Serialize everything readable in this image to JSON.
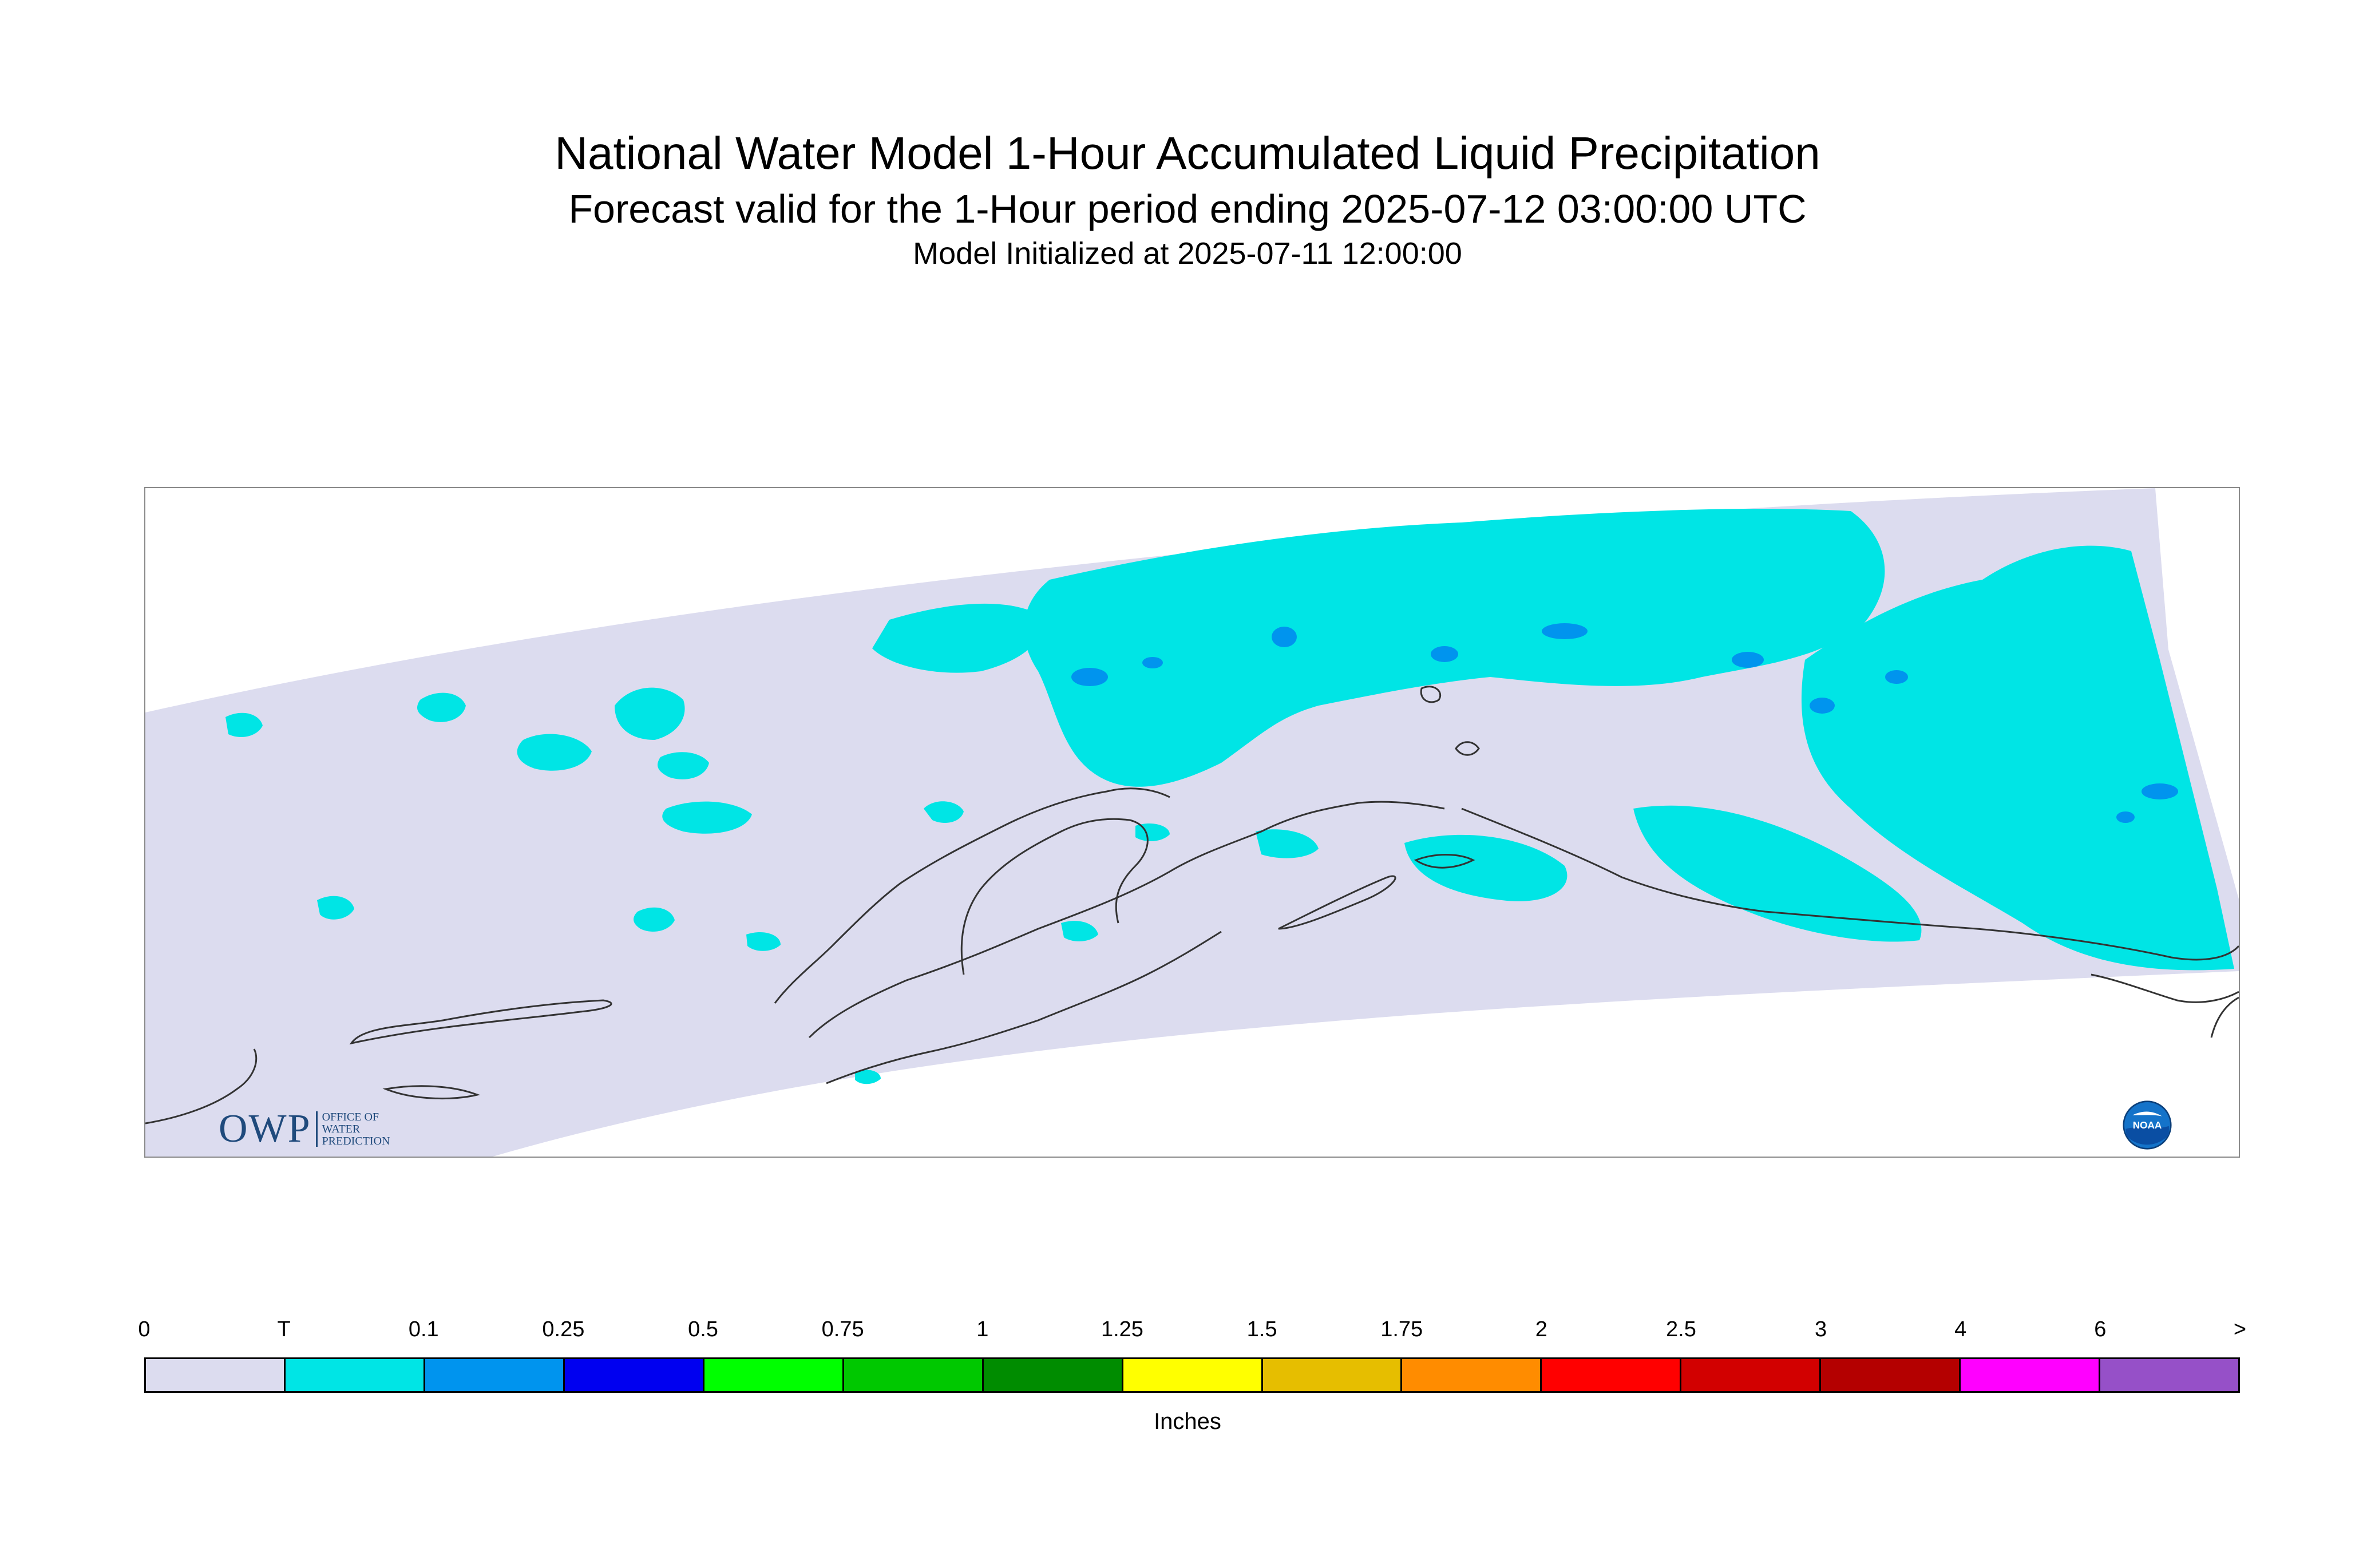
{
  "header": {
    "title": "National Water Model 1-Hour Accumulated Liquid Precipitation",
    "subtitle": "Forecast valid for the 1-Hour period ending 2025-07-12 03:00:00 UTC",
    "init": "Model Initialized at 2025-07-11 12:00:00"
  },
  "logos": {
    "owp_main": "OWP",
    "owp_line1": "OFFICE OF",
    "owp_line2": "WATER",
    "owp_line3": "PREDICTION",
    "noaa": "NOAA"
  },
  "legend": {
    "tick_labels": [
      "0",
      "T",
      "0.1",
      "0.25",
      "0.5",
      "0.75",
      "1",
      "1.25",
      "1.5",
      "1.75",
      "2",
      "2.5",
      "3",
      "4",
      "6",
      ">"
    ],
    "colors": [
      "#dcdcef",
      "#00e5e5",
      "#0094ee",
      "#0000f0",
      "#00ff00",
      "#00c800",
      "#008c00",
      "#ffff00",
      "#e6be00",
      "#ff8c00",
      "#ff0000",
      "#d20000",
      "#b40000",
      "#ff00ff",
      "#9650c8"
    ],
    "units": "Inches"
  },
  "map_colors": {
    "domain": "#dcdcef",
    "trace": "#00e5e5",
    "light": "#0094ee",
    "coast": "#333333"
  }
}
